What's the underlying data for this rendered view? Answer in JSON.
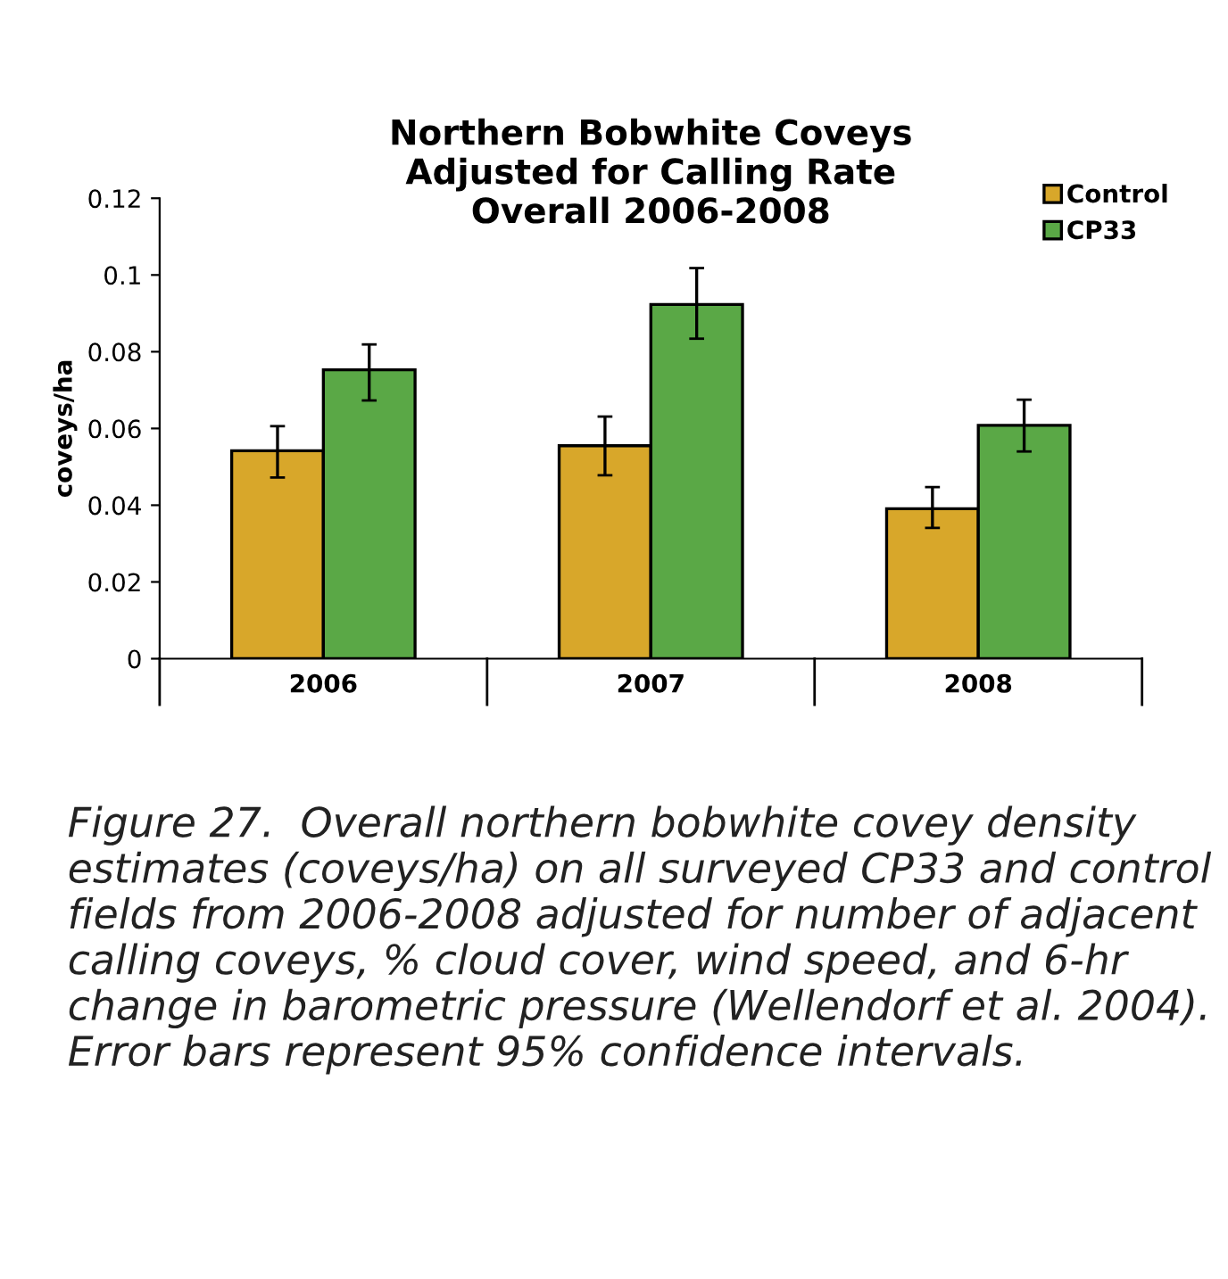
{
  "chart_data": {
    "type": "bar",
    "title": "Northern Bobwhite Coveys\nAdjusted for Calling Rate\nOverall 2006-2008",
    "ylabel": "coveys/ha",
    "categories": [
      "2006",
      "2007",
      "2008"
    ],
    "series": [
      {
        "name": "Control",
        "color": "#d8a72a",
        "values": [
          0.0542,
          0.0555,
          0.0391
        ],
        "errors": [
          [
            0.0472,
            0.0606
          ],
          [
            0.0478,
            0.0631
          ],
          [
            0.0341,
            0.0447
          ]
        ]
      },
      {
        "name": "CP33",
        "color": "#5aa846",
        "values": [
          0.0753,
          0.0923,
          0.0608
        ],
        "errors": [
          [
            0.0673,
            0.0819
          ],
          [
            0.0834,
            0.1018
          ],
          [
            0.054,
            0.0675
          ]
        ]
      }
    ],
    "ylim": [
      0,
      0.12
    ],
    "yticks": [
      0,
      0.02,
      0.04,
      0.06,
      0.08,
      0.1,
      0.12
    ],
    "grid": false,
    "legend": "top right",
    "annotations": [
      "Figure 27.  Overall northern bobwhite covey density estimates (coveys/ha) on all surveyed CP33 and control fields from 2006-2008 adjusted for number of adjacent calling coveys, % cloud cover, wind speed, and 6-hr change in barometric pressure (Wellendorf et al. 2004).  Error bars represent 95% confidence intervals."
    ]
  }
}
